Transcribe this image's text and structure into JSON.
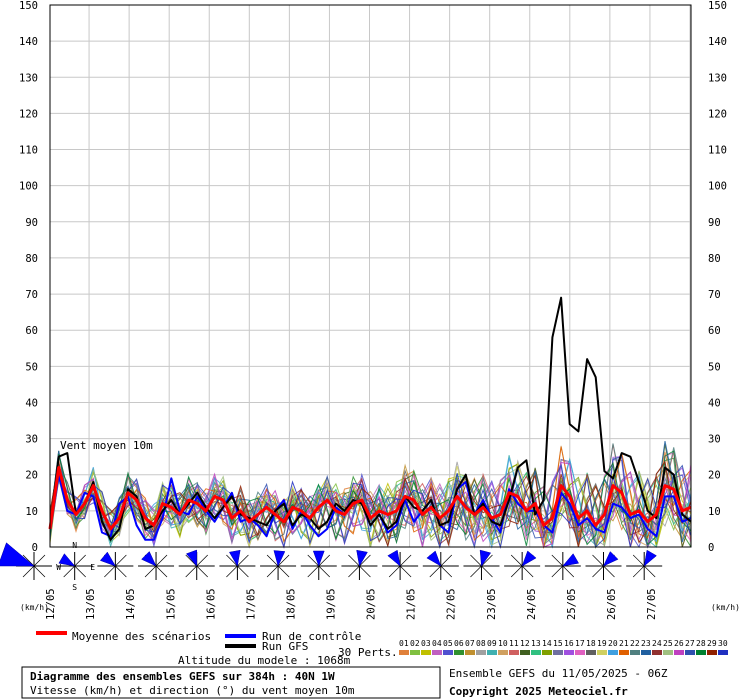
{
  "chart_data": {
    "type": "line",
    "ylim": [
      0,
      150
    ],
    "y_ticks": [
      0,
      10,
      20,
      30,
      40,
      50,
      60,
      70,
      80,
      90,
      100,
      110,
      120,
      130,
      140,
      150
    ],
    "grid": true,
    "x_labels": [
      "12/05",
      "13/05",
      "14/05",
      "15/05",
      "16/05",
      "17/05",
      "18/05",
      "19/05",
      "20/05",
      "21/05",
      "22/05",
      "23/05",
      "24/05",
      "25/05",
      "26/05",
      "27/05"
    ],
    "x_unit_label": "(km/h)",
    "annotation": "Vent moyen 10m",
    "series": [
      {
        "name": "Moyenne des scénarios",
        "color": "#ff0000",
        "values": [
          5,
          22,
          13,
          9,
          12,
          17,
          10,
          5,
          8,
          15,
          13,
          8,
          6,
          12,
          11,
          9,
          13,
          12,
          10,
          14,
          13,
          8,
          10,
          7,
          9,
          11,
          9,
          7,
          11,
          10,
          8,
          11,
          13,
          10,
          9,
          12,
          13,
          8,
          10,
          9,
          10,
          14,
          13,
          9,
          11,
          8,
          10,
          14,
          11,
          9,
          11,
          8,
          9,
          15,
          14,
          10,
          12,
          6,
          8,
          17,
          14,
          8,
          10,
          6,
          9,
          17,
          15,
          9,
          10,
          7,
          9,
          17,
          16,
          10,
          11
        ]
      },
      {
        "name": "Run de contrôle",
        "color": "#0000ff",
        "values": [
          5,
          20,
          10,
          9,
          15,
          14,
          4,
          3,
          12,
          14,
          6,
          2,
          2,
          8,
          19,
          10,
          9,
          14,
          10,
          7,
          11,
          15,
          7,
          8,
          6,
          3,
          10,
          13,
          5,
          10,
          6,
          3,
          5,
          11,
          9,
          13,
          12,
          6,
          9,
          4,
          6,
          13,
          7,
          10,
          13,
          6,
          4,
          16,
          18,
          9,
          13,
          8,
          4,
          16,
          12,
          10,
          10,
          6,
          4,
          15,
          12,
          6,
          8,
          5,
          4,
          12,
          11,
          8,
          9,
          5,
          3,
          14,
          14,
          7,
          8
        ]
      },
      {
        "name": "Run GFS",
        "color": "#000000",
        "values": [
          5,
          25,
          26,
          9,
          12,
          18,
          7,
          2,
          5,
          16,
          14,
          5,
          6,
          10,
          13,
          9,
          12,
          15,
          11,
          8,
          11,
          14,
          9,
          8,
          7,
          6,
          10,
          12,
          6,
          9,
          8,
          5,
          7,
          12,
          10,
          13,
          12,
          6,
          9,
          5,
          7,
          14,
          11,
          10,
          13,
          6,
          7,
          16,
          20,
          9,
          12,
          7,
          6,
          13,
          22,
          24,
          9,
          13,
          58,
          69,
          34,
          32,
          52,
          47,
          21,
          19,
          26,
          25,
          18,
          10,
          8,
          22,
          20,
          9,
          7
        ]
      }
    ],
    "wind_directions_deg": [
      290,
      300,
      310,
      315,
      340,
      350,
      5,
      0,
      10,
      330,
      320,
      15,
      40,
      60,
      45,
      30
    ],
    "legend": {
      "mean": "Moyenne des scénarios",
      "control": "Run de contrôle",
      "gfs": "Run GFS",
      "perts": "30 Perts.",
      "altitude": "Altitude du modele : 1068m",
      "pert_numbers": [
        "01",
        "02",
        "03",
        "04",
        "05",
        "06",
        "07",
        "08",
        "09",
        "10",
        "11",
        "12",
        "13",
        "14",
        "15",
        "16",
        "17",
        "18",
        "19",
        "20",
        "21",
        "22",
        "23",
        "24",
        "25",
        "26",
        "27",
        "28",
        "29",
        "30"
      ]
    },
    "perturbation_colors": [
      "#e0803a",
      "#80c040",
      "#c0c000",
      "#c060c0",
      "#5050d0",
      "#309030",
      "#c09030",
      "#a0a0a0",
      "#40b0b0",
      "#d0a060",
      "#d06060",
      "#406020",
      "#30c080",
      "#80a000",
      "#7070a0",
      "#a050e0",
      "#e060c0",
      "#606060",
      "#d0d060",
      "#40a0e0",
      "#e06000",
      "#508080",
      "#2060a0",
      "#903030",
      "#a0c080",
      "#c040c0",
      "#3050b0",
      "#008030",
      "#902000",
      "#2030c0"
    ]
  },
  "compass": {
    "n": "N",
    "s": "S",
    "w": "W",
    "e": "E"
  },
  "footer": {
    "title": "Diagramme des ensembles GEFS sur 384h : 40N 1W",
    "subtitle": "Vitesse (km/h) et direction (°) du vent moyen 10m",
    "run_info": "Ensemble GEFS du 11/05/2025 - 06Z",
    "copyright": "Copyright 2025 Meteociel.fr"
  }
}
